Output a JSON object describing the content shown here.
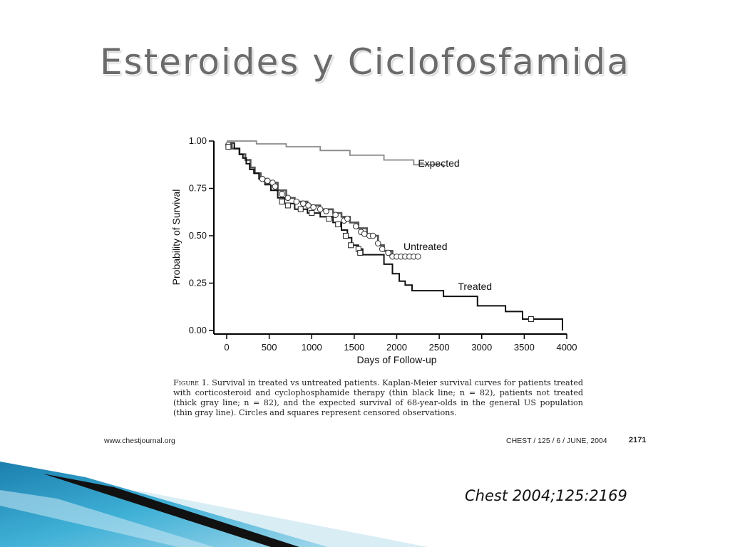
{
  "slide": {
    "title": "Esteroides y Ciclofosfamida",
    "citation": "Chest 2004;125:2169"
  },
  "caption": {
    "label": "Figure 1.",
    "text": " Survival in treated vs untreated patients. Kaplan-Meier survival curves for patients treated with corticosteroid and cyclophosphamide therapy (thin black line; n = 82), patients not treated (thick gray line; n = 82), and the expected survival of 68-year-olds in the general US population (thin gray line). Circles and squares represent censored observations."
  },
  "footer": {
    "url": "www.chestjournal.org",
    "issue": "CHEST / 125 / 6 / JUNE, 2004",
    "page": "2171"
  },
  "colors": {
    "expected": "#8a8a8a",
    "untreated": "#555555",
    "treated": "#111111",
    "decor_blue": "#2a9cc4"
  },
  "chart_data": {
    "type": "line",
    "xlabel": "Days of Follow-up",
    "ylabel": "Probability of Survival",
    "xlim": [
      0,
      4000
    ],
    "ylim": [
      0,
      1
    ],
    "xticks": [
      "0",
      "500",
      "1000",
      "1500",
      "2000",
      "2500",
      "3000",
      "3500",
      "4000"
    ],
    "yticks": [
      "0.00",
      "0.25",
      "0.50",
      "0.75",
      "1.00"
    ],
    "series": [
      {
        "name": "Expected",
        "style": "thin-gray",
        "points": [
          [
            0,
            1.0
          ],
          [
            350,
            1.0
          ],
          [
            350,
            0.985
          ],
          [
            700,
            0.985
          ],
          [
            700,
            0.97
          ],
          [
            1100,
            0.97
          ],
          [
            1100,
            0.95
          ],
          [
            1450,
            0.95
          ],
          [
            1450,
            0.925
          ],
          [
            1850,
            0.925
          ],
          [
            1850,
            0.9
          ],
          [
            2200,
            0.9
          ],
          [
            2200,
            0.875
          ],
          [
            2550,
            0.875
          ],
          [
            2550,
            0.86
          ]
        ],
        "censored": []
      },
      {
        "name": "Untreated",
        "style": "thick-gray",
        "points": [
          [
            0,
            0.98
          ],
          [
            60,
            0.98
          ],
          [
            60,
            0.96
          ],
          [
            150,
            0.96
          ],
          [
            150,
            0.93
          ],
          [
            220,
            0.93
          ],
          [
            220,
            0.9
          ],
          [
            280,
            0.9
          ],
          [
            280,
            0.86
          ],
          [
            330,
            0.86
          ],
          [
            330,
            0.83
          ],
          [
            400,
            0.83
          ],
          [
            400,
            0.8
          ],
          [
            480,
            0.8
          ],
          [
            480,
            0.78
          ],
          [
            600,
            0.78
          ],
          [
            600,
            0.74
          ],
          [
            700,
            0.74
          ],
          [
            700,
            0.7
          ],
          [
            800,
            0.7
          ],
          [
            800,
            0.68
          ],
          [
            950,
            0.68
          ],
          [
            950,
            0.66
          ],
          [
            1100,
            0.66
          ],
          [
            1100,
            0.64
          ],
          [
            1250,
            0.64
          ],
          [
            1250,
            0.62
          ],
          [
            1350,
            0.62
          ],
          [
            1350,
            0.6
          ],
          [
            1450,
            0.6
          ],
          [
            1450,
            0.57
          ],
          [
            1550,
            0.57
          ],
          [
            1550,
            0.54
          ],
          [
            1650,
            0.54
          ],
          [
            1650,
            0.5
          ],
          [
            1780,
            0.5
          ],
          [
            1780,
            0.45
          ],
          [
            1850,
            0.45
          ],
          [
            1850,
            0.42
          ],
          [
            1950,
            0.42
          ],
          [
            1950,
            0.39
          ],
          [
            2250,
            0.39
          ]
        ],
        "censored": [
          [
            20,
            0.98
          ],
          [
            420,
            0.8
          ],
          [
            480,
            0.79
          ],
          [
            540,
            0.78
          ],
          [
            570,
            0.76
          ],
          [
            650,
            0.72
          ],
          [
            720,
            0.7
          ],
          [
            820,
            0.68
          ],
          [
            900,
            0.67
          ],
          [
            960,
            0.66
          ],
          [
            1020,
            0.65
          ],
          [
            1100,
            0.64
          ],
          [
            1170,
            0.63
          ],
          [
            1280,
            0.61
          ],
          [
            1380,
            0.58
          ],
          [
            1420,
            0.59
          ],
          [
            1520,
            0.55
          ],
          [
            1580,
            0.52
          ],
          [
            1620,
            0.51
          ],
          [
            1680,
            0.5
          ],
          [
            1720,
            0.5
          ],
          [
            1780,
            0.46
          ],
          [
            1830,
            0.43
          ],
          [
            1900,
            0.41
          ],
          [
            1950,
            0.39
          ],
          [
            2000,
            0.39
          ],
          [
            2050,
            0.39
          ],
          [
            2100,
            0.39
          ],
          [
            2150,
            0.39
          ],
          [
            2200,
            0.39
          ],
          [
            2250,
            0.39
          ]
        ]
      },
      {
        "name": "Treated",
        "style": "thin-black",
        "points": [
          [
            0,
            0.99
          ],
          [
            90,
            0.99
          ],
          [
            90,
            0.96
          ],
          [
            150,
            0.96
          ],
          [
            150,
            0.93
          ],
          [
            190,
            0.93
          ],
          [
            190,
            0.91
          ],
          [
            230,
            0.91
          ],
          [
            230,
            0.88
          ],
          [
            270,
            0.88
          ],
          [
            270,
            0.85
          ],
          [
            320,
            0.85
          ],
          [
            320,
            0.83
          ],
          [
            380,
            0.83
          ],
          [
            380,
            0.8
          ],
          [
            450,
            0.8
          ],
          [
            450,
            0.77
          ],
          [
            520,
            0.77
          ],
          [
            520,
            0.74
          ],
          [
            600,
            0.74
          ],
          [
            600,
            0.7
          ],
          [
            680,
            0.7
          ],
          [
            680,
            0.67
          ],
          [
            800,
            0.67
          ],
          [
            800,
            0.64
          ],
          [
            950,
            0.64
          ],
          [
            950,
            0.62
          ],
          [
            1100,
            0.62
          ],
          [
            1100,
            0.6
          ],
          [
            1250,
            0.6
          ],
          [
            1250,
            0.57
          ],
          [
            1350,
            0.57
          ],
          [
            1350,
            0.53
          ],
          [
            1420,
            0.53
          ],
          [
            1420,
            0.49
          ],
          [
            1470,
            0.49
          ],
          [
            1470,
            0.45
          ],
          [
            1550,
            0.45
          ],
          [
            1550,
            0.43
          ],
          [
            1600,
            0.43
          ],
          [
            1600,
            0.4
          ],
          [
            1850,
            0.4
          ],
          [
            1850,
            0.35
          ],
          [
            1950,
            0.35
          ],
          [
            1950,
            0.3
          ],
          [
            2030,
            0.3
          ],
          [
            2030,
            0.26
          ],
          [
            2100,
            0.26
          ],
          [
            2100,
            0.24
          ],
          [
            2180,
            0.24
          ],
          [
            2180,
            0.21
          ],
          [
            2550,
            0.21
          ],
          [
            2550,
            0.18
          ],
          [
            2950,
            0.18
          ],
          [
            2950,
            0.13
          ],
          [
            3280,
            0.13
          ],
          [
            3280,
            0.1
          ],
          [
            3480,
            0.1
          ],
          [
            3480,
            0.06
          ],
          [
            3950,
            0.06
          ],
          [
            3950,
            0.0
          ]
        ],
        "censored": [
          [
            20,
            0.97
          ],
          [
            650,
            0.68
          ],
          [
            720,
            0.66
          ],
          [
            870,
            0.64
          ],
          [
            1000,
            0.62
          ],
          [
            1200,
            0.59
          ],
          [
            1310,
            0.56
          ],
          [
            1400,
            0.5
          ],
          [
            1460,
            0.45
          ],
          [
            1550,
            0.43
          ],
          [
            1570,
            0.41
          ],
          [
            3580,
            0.06
          ]
        ]
      }
    ],
    "annotations": [
      {
        "text": "Expected",
        "x": 2250,
        "y": 0.865
      },
      {
        "text": "Untreated",
        "x": 2080,
        "y": 0.425
      },
      {
        "text": "Treated",
        "x": 2720,
        "y": 0.215
      }
    ]
  }
}
